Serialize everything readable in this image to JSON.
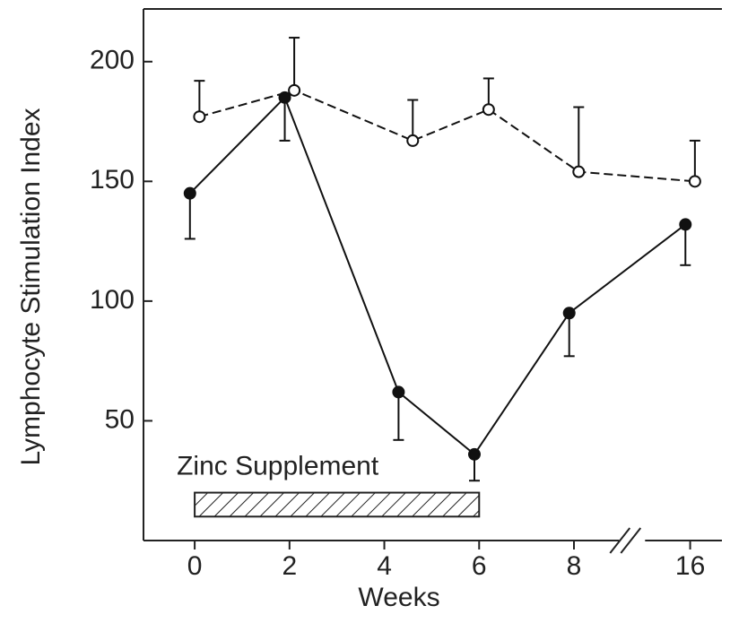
{
  "chart_data": {
    "type": "line",
    "x_label": "Weeks",
    "y_label": "Lymphocyte Stimulation Index",
    "xlim": [
      -1.08,
      16.67
    ],
    "xbreak": [
      8.8,
      15.2
    ],
    "xticks": [
      0,
      2,
      4,
      6,
      8,
      16
    ],
    "ylim": [
      0,
      222
    ],
    "yticks": [
      50,
      100,
      150,
      200
    ],
    "series": [
      {
        "color": "#111111",
        "marker": "filled",
        "dashed": false,
        "error_side": "below",
        "x": [
          -0.1,
          1.9,
          4.3,
          5.9,
          7.9,
          15.9
        ],
        "values": [
          145,
          185,
          62,
          36,
          95,
          132
        ],
        "errors": [
          19,
          18,
          20,
          11,
          18,
          17
        ]
      },
      {
        "color": "#111111",
        "marker": "open",
        "dashed": true,
        "error_side": "above",
        "x": [
          0.1,
          2.1,
          4.6,
          6.2,
          8.1,
          16.1
        ],
        "values": [
          177,
          188,
          167,
          180,
          154,
          150
        ],
        "errors": [
          15,
          22,
          17,
          13,
          27,
          17
        ]
      }
    ],
    "supplement": {
      "text": "Zinc Supplement",
      "x": [
        0,
        6
      ],
      "y": [
        10,
        20
      ]
    }
  }
}
